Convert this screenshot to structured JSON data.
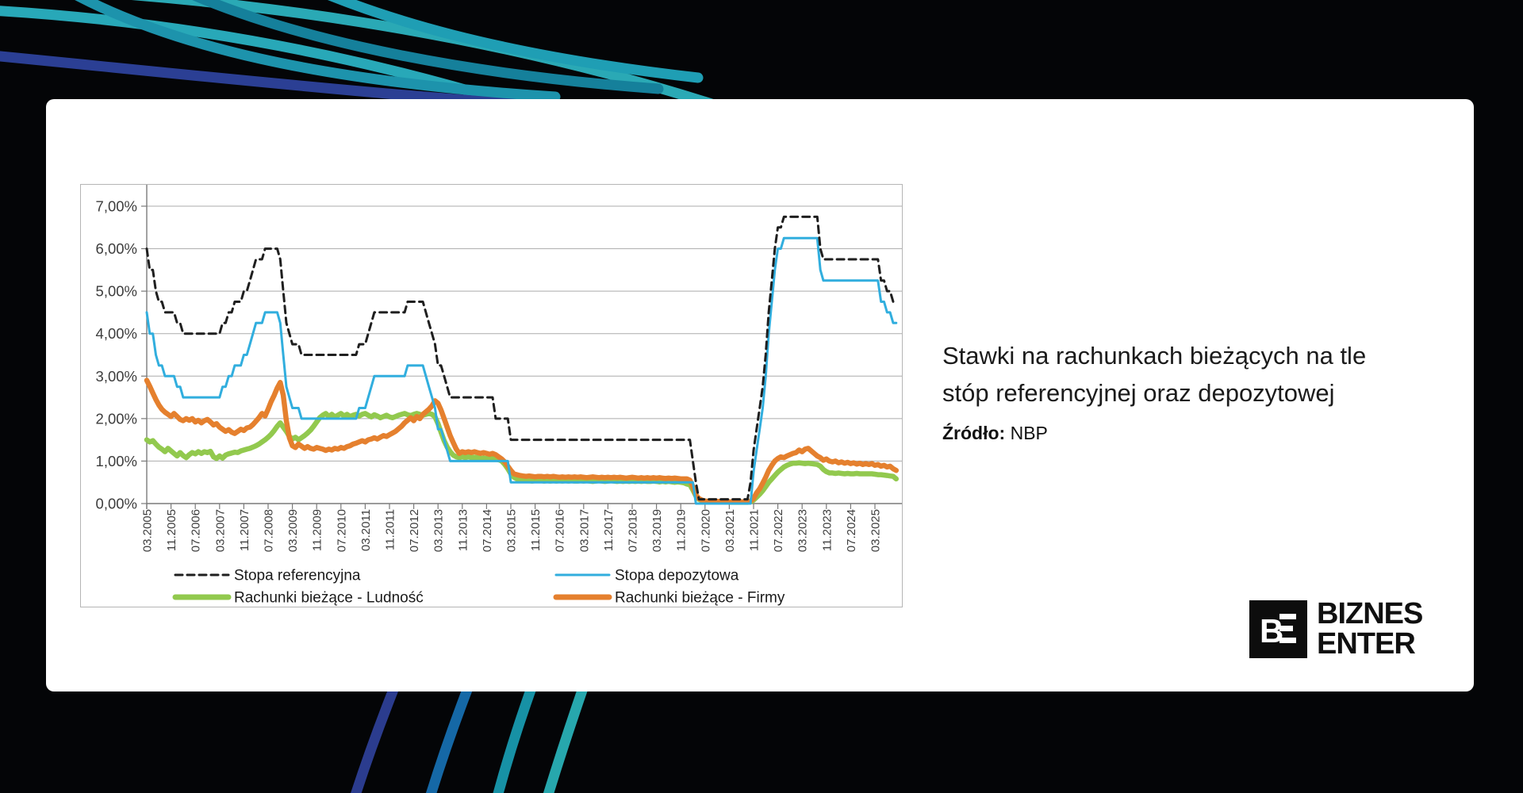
{
  "card": {
    "title_line1": "Stawki na rachunkach bieżących na tle",
    "title_line2": "stóp referencyjnej oraz depozytowej",
    "source_label": "Źródło:",
    "source_value": "NBP"
  },
  "logo": {
    "monogram_letter": "B",
    "line1": "BIZNES",
    "line2": "ENTER"
  },
  "decor": {
    "background_color": "#040507",
    "top_arc_colors": [
      "#28a8b8",
      "#2b3f94",
      "#1d93ac",
      "#2aa9b5",
      "#15809b",
      "#1f9eb4"
    ],
    "bottom_arc_colors": [
      "#2b3c8e",
      "#1568a6",
      "#1791a5",
      "#27a7ad"
    ]
  },
  "chart_data": {
    "type": "line",
    "title": "",
    "xlabel": "",
    "ylabel": "",
    "grid": true,
    "ylim": [
      0,
      7
    ],
    "y_axis": {
      "tick_labels": [
        "0,00%",
        "1,00%",
        "2,00%",
        "3,00%",
        "4,00%",
        "5,00%",
        "6,00%",
        "7,00%"
      ]
    },
    "x_axis": {
      "start_month": "03.2005",
      "end_month": "10.2025",
      "tick_interval_months": 8,
      "tick_labels": [
        "03.2005",
        "11.2005",
        "07.2006",
        "03.2007",
        "11.2007",
        "07.2008",
        "03.2009",
        "11.2009",
        "07.2010",
        "03.2011",
        "11.2011",
        "07.2012",
        "03.2013",
        "11.2013",
        "07.2014",
        "03.2015",
        "11.2015",
        "07.2016",
        "03.2017",
        "11.2017",
        "07.2018",
        "03.2019",
        "11.2019",
        "07.2020",
        "03.2021",
        "11.2021",
        "07.2022",
        "03.2023",
        "11.2023",
        "07.2024",
        "03.2025"
      ]
    },
    "legend_position": "bottom-two-columns",
    "series": [
      {
        "name": "Stopa referencyjna",
        "style": "dashed",
        "color": "#1f1f1f",
        "values": [
          6,
          5.5,
          5.5,
          5,
          4.75,
          4.75,
          4.5,
          4.5,
          4.5,
          4.5,
          4.25,
          4.25,
          4,
          4,
          4,
          4,
          4,
          4,
          4,
          4,
          4,
          4,
          4,
          4,
          4,
          4.25,
          4.25,
          4.5,
          4.5,
          4.75,
          4.75,
          4.75,
          5,
          5,
          5.25,
          5.5,
          5.75,
          5.75,
          5.75,
          6,
          6,
          6,
          6,
          6,
          5.75,
          5,
          4.25,
          4,
          3.75,
          3.75,
          3.75,
          3.5,
          3.5,
          3.5,
          3.5,
          3.5,
          3.5,
          3.5,
          3.5,
          3.5,
          3.5,
          3.5,
          3.5,
          3.5,
          3.5,
          3.5,
          3.5,
          3.5,
          3.5,
          3.5,
          3.75,
          3.75,
          3.75,
          4,
          4.25,
          4.5,
          4.5,
          4.5,
          4.5,
          4.5,
          4.5,
          4.5,
          4.5,
          4.5,
          4.5,
          4.5,
          4.75,
          4.75,
          4.75,
          4.75,
          4.75,
          4.75,
          4.5,
          4.25,
          4,
          3.75,
          3.25,
          3.25,
          3,
          2.75,
          2.5,
          2.5,
          2.5,
          2.5,
          2.5,
          2.5,
          2.5,
          2.5,
          2.5,
          2.5,
          2.5,
          2.5,
          2.5,
          2.5,
          2.5,
          2,
          2,
          2,
          2,
          2,
          1.5,
          1.5,
          1.5,
          1.5,
          1.5,
          1.5,
          1.5,
          1.5,
          1.5,
          1.5,
          1.5,
          1.5,
          1.5,
          1.5,
          1.5,
          1.5,
          1.5,
          1.5,
          1.5,
          1.5,
          1.5,
          1.5,
          1.5,
          1.5,
          1.5,
          1.5,
          1.5,
          1.5,
          1.5,
          1.5,
          1.5,
          1.5,
          1.5,
          1.5,
          1.5,
          1.5,
          1.5,
          1.5,
          1.5,
          1.5,
          1.5,
          1.5,
          1.5,
          1.5,
          1.5,
          1.5,
          1.5,
          1.5,
          1.5,
          1.5,
          1.5,
          1.5,
          1.5,
          1.5,
          1.5,
          1.5,
          1.5,
          1.5,
          1.5,
          1.5,
          1,
          0.5,
          0.1,
          0.1,
          0.1,
          0.1,
          0.1,
          0.1,
          0.1,
          0.1,
          0.1,
          0.1,
          0.1,
          0.1,
          0.1,
          0.1,
          0.1,
          0.1,
          0.1,
          0.5,
          1.25,
          1.75,
          2.25,
          2.75,
          3.5,
          4.5,
          5.25,
          6,
          6.5,
          6.5,
          6.75,
          6.75,
          6.75,
          6.75,
          6.75,
          6.75,
          6.75,
          6.75,
          6.75,
          6.75,
          6.75,
          6.75,
          6,
          5.75,
          5.75,
          5.75,
          5.75,
          5.75,
          5.75,
          5.75,
          5.75,
          5.75,
          5.75,
          5.75,
          5.75,
          5.75,
          5.75,
          5.75,
          5.75,
          5.75,
          5.75,
          5.75,
          5.25,
          5.25,
          5,
          5,
          4.75,
          4.75
        ]
      },
      {
        "name": "Stopa depozytowa",
        "style": "solid-thin",
        "color": "#31aede",
        "values": [
          4.5,
          4,
          4,
          3.5,
          3.25,
          3.25,
          3,
          3,
          3,
          3,
          2.75,
          2.75,
          2.5,
          2.5,
          2.5,
          2.5,
          2.5,
          2.5,
          2.5,
          2.5,
          2.5,
          2.5,
          2.5,
          2.5,
          2.5,
          2.75,
          2.75,
          3,
          3,
          3.25,
          3.25,
          3.25,
          3.5,
          3.5,
          3.75,
          4,
          4.25,
          4.25,
          4.25,
          4.5,
          4.5,
          4.5,
          4.5,
          4.5,
          4.25,
          3.5,
          2.75,
          2.5,
          2.25,
          2.25,
          2.25,
          2,
          2,
          2,
          2,
          2,
          2,
          2,
          2,
          2,
          2,
          2,
          2,
          2,
          2,
          2,
          2,
          2,
          2,
          2,
          2.25,
          2.25,
          2.25,
          2.5,
          2.75,
          3,
          3,
          3,
          3,
          3,
          3,
          3,
          3,
          3,
          3,
          3,
          3.25,
          3.25,
          3.25,
          3.25,
          3.25,
          3.25,
          3,
          2.75,
          2.5,
          2.25,
          1.75,
          1.75,
          1.5,
          1.25,
          1,
          1,
          1,
          1,
          1,
          1,
          1,
          1,
          1,
          1,
          1,
          1,
          1,
          1,
          1,
          1,
          1,
          1,
          1,
          1,
          0.5,
          0.5,
          0.5,
          0.5,
          0.5,
          0.5,
          0.5,
          0.5,
          0.5,
          0.5,
          0.5,
          0.5,
          0.5,
          0.5,
          0.5,
          0.5,
          0.5,
          0.5,
          0.5,
          0.5,
          0.5,
          0.5,
          0.5,
          0.5,
          0.5,
          0.5,
          0.5,
          0.5,
          0.5,
          0.5,
          0.5,
          0.5,
          0.5,
          0.5,
          0.5,
          0.5,
          0.5,
          0.5,
          0.5,
          0.5,
          0.5,
          0.5,
          0.5,
          0.5,
          0.5,
          0.5,
          0.5,
          0.5,
          0.5,
          0.5,
          0.5,
          0.5,
          0.5,
          0.5,
          0.5,
          0.5,
          0.5,
          0.5,
          0.5,
          0.5,
          0.5,
          0,
          0,
          0,
          0,
          0,
          0,
          0,
          0,
          0,
          0,
          0,
          0,
          0,
          0,
          0,
          0,
          0,
          0,
          0,
          0.75,
          1.25,
          1.75,
          2.25,
          3,
          4,
          4.75,
          5.5,
          6,
          6,
          6.25,
          6.25,
          6.25,
          6.25,
          6.25,
          6.25,
          6.25,
          6.25,
          6.25,
          6.25,
          6.25,
          6.25,
          5.5,
          5.25,
          5.25,
          5.25,
          5.25,
          5.25,
          5.25,
          5.25,
          5.25,
          5.25,
          5.25,
          5.25,
          5.25,
          5.25,
          5.25,
          5.25,
          5.25,
          5.25,
          5.25,
          5.25,
          4.75,
          4.75,
          4.5,
          4.5,
          4.25,
          4.25
        ]
      },
      {
        "name": "Rachunki bieżące - Ludność",
        "style": "solid-thick",
        "color": "#92c94e",
        "values": [
          1.5,
          1.45,
          1.48,
          1.4,
          1.33,
          1.28,
          1.22,
          1.3,
          1.24,
          1.18,
          1.12,
          1.2,
          1.13,
          1.08,
          1.15,
          1.2,
          1.17,
          1.22,
          1.18,
          1.22,
          1.2,
          1.23,
          1.1,
          1.06,
          1.12,
          1.07,
          1.14,
          1.17,
          1.19,
          1.21,
          1.2,
          1.24,
          1.26,
          1.28,
          1.3,
          1.33,
          1.36,
          1.4,
          1.45,
          1.5,
          1.56,
          1.63,
          1.72,
          1.82,
          1.9,
          1.8,
          1.7,
          1.58,
          1.52,
          1.56,
          1.5,
          1.55,
          1.6,
          1.66,
          1.73,
          1.82,
          1.92,
          2.02,
          2.08,
          2.12,
          2.05,
          2.1,
          2.04,
          2.08,
          2.12,
          2.06,
          2.1,
          2.05,
          2.08,
          2.1,
          2.06,
          2.1,
          2.12,
          2.08,
          2.04,
          2.09,
          2.06,
          2.02,
          2.05,
          2.08,
          2.04,
          2.02,
          2.05,
          2.08,
          2.1,
          2.12,
          2.09,
          2.07,
          2.1,
          2.12,
          2.1,
          2.08,
          2.1,
          2.12,
          2.1,
          2.04,
          1.88,
          1.68,
          1.48,
          1.33,
          1.22,
          1.14,
          1.1,
          1.08,
          1.1,
          1.08,
          1.1,
          1.08,
          1.09,
          1.08,
          1.06,
          1.07,
          1.06,
          1.05,
          1.06,
          1.05,
          1.03,
          1,
          0.92,
          0.82,
          0.7,
          0.62,
          0.58,
          0.56,
          0.55,
          0.54,
          0.54,
          0.53,
          0.54,
          0.54,
          0.54,
          0.53,
          0.54,
          0.53,
          0.54,
          0.53,
          0.54,
          0.53,
          0.54,
          0.53,
          0.54,
          0.53,
          0.53,
          0.54,
          0.53,
          0.54,
          0.53,
          0.52,
          0.53,
          0.54,
          0.53,
          0.52,
          0.53,
          0.54,
          0.53,
          0.52,
          0.53,
          0.52,
          0.53,
          0.52,
          0.53,
          0.52,
          0.53,
          0.52,
          0.53,
          0.52,
          0.52,
          0.53,
          0.52,
          0.51,
          0.52,
          0.51,
          0.52,
          0.51,
          0.5,
          0.51,
          0.5,
          0.49,
          0.46,
          0.44,
          0.32,
          0.18,
          0.1,
          0.07,
          0.06,
          0.05,
          0.05,
          0.04,
          0.04,
          0.04,
          0.04,
          0.04,
          0.03,
          0.03,
          0.03,
          0.03,
          0.03,
          0.03,
          0.03,
          0.04,
          0.08,
          0.15,
          0.22,
          0.3,
          0.4,
          0.5,
          0.58,
          0.66,
          0.74,
          0.8,
          0.86,
          0.9,
          0.93,
          0.95,
          0.95,
          0.96,
          0.95,
          0.94,
          0.95,
          0.94,
          0.93,
          0.92,
          0.88,
          0.8,
          0.75,
          0.72,
          0.72,
          0.71,
          0.72,
          0.71,
          0.7,
          0.71,
          0.7,
          0.7,
          0.71,
          0.7,
          0.7,
          0.7,
          0.7,
          0.7,
          0.69,
          0.68,
          0.68,
          0.67,
          0.66,
          0.65,
          0.64,
          0.58
        ]
      },
      {
        "name": "Rachunki bieżące - Firmy",
        "style": "solid-thick",
        "color": "#e5802e",
        "values": [
          2.9,
          2.76,
          2.6,
          2.45,
          2.32,
          2.22,
          2.15,
          2.1,
          2.05,
          2.12,
          2.05,
          1.98,
          1.95,
          2,
          1.96,
          2,
          1.92,
          1.96,
          1.9,
          1.95,
          1.98,
          1.92,
          1.85,
          1.88,
          1.8,
          1.75,
          1.7,
          1.74,
          1.68,
          1.65,
          1.7,
          1.75,
          1.72,
          1.78,
          1.8,
          1.86,
          1.94,
          2.02,
          2.12,
          2.06,
          2.22,
          2.4,
          2.55,
          2.72,
          2.85,
          2.55,
          1.95,
          1.55,
          1.36,
          1.32,
          1.4,
          1.35,
          1.3,
          1.34,
          1.3,
          1.28,
          1.32,
          1.3,
          1.28,
          1.25,
          1.28,
          1.26,
          1.3,
          1.28,
          1.32,
          1.3,
          1.34,
          1.36,
          1.4,
          1.42,
          1.45,
          1.48,
          1.45,
          1.5,
          1.52,
          1.55,
          1.52,
          1.56,
          1.6,
          1.58,
          1.62,
          1.66,
          1.7,
          1.76,
          1.82,
          1.9,
          1.96,
          2.02,
          1.95,
          2.05,
          2,
          2.1,
          2.16,
          2.22,
          2.3,
          2.42,
          2.36,
          2.2,
          2,
          1.8,
          1.6,
          1.44,
          1.28,
          1.18,
          1.22,
          1.2,
          1.22,
          1.2,
          1.22,
          1.2,
          1.18,
          1.2,
          1.18,
          1.16,
          1.18,
          1.15,
          1.1,
          1.05,
          0.98,
          0.88,
          0.78,
          0.7,
          0.68,
          0.66,
          0.65,
          0.64,
          0.65,
          0.64,
          0.63,
          0.64,
          0.64,
          0.63,
          0.64,
          0.63,
          0.64,
          0.63,
          0.62,
          0.63,
          0.62,
          0.63,
          0.62,
          0.63,
          0.62,
          0.63,
          0.62,
          0.61,
          0.62,
          0.63,
          0.62,
          0.61,
          0.62,
          0.61,
          0.62,
          0.61,
          0.62,
          0.61,
          0.62,
          0.61,
          0.6,
          0.61,
          0.62,
          0.61,
          0.6,
          0.61,
          0.6,
          0.61,
          0.6,
          0.61,
          0.6,
          0.61,
          0.6,
          0.59,
          0.6,
          0.59,
          0.6,
          0.59,
          0.58,
          0.58,
          0.58,
          0.55,
          0.4,
          0.2,
          0.12,
          0.08,
          0.06,
          0.05,
          0.05,
          0.05,
          0.05,
          0.05,
          0.05,
          0.05,
          0.04,
          0.04,
          0.04,
          0.04,
          0.04,
          0.04,
          0.05,
          0.06,
          0.12,
          0.25,
          0.35,
          0.48,
          0.62,
          0.78,
          0.9,
          1,
          1.06,
          1.1,
          1.08,
          1.12,
          1.15,
          1.18,
          1.2,
          1.26,
          1.22,
          1.28,
          1.3,
          1.24,
          1.18,
          1.12,
          1.08,
          1.02,
          1.05,
          1,
          0.98,
          1,
          0.96,
          0.98,
          0.95,
          0.97,
          0.94,
          0.96,
          0.93,
          0.95,
          0.92,
          0.94,
          0.92,
          0.94,
          0.9,
          0.92,
          0.88,
          0.9,
          0.86,
          0.88,
          0.82,
          0.78
        ]
      }
    ]
  }
}
